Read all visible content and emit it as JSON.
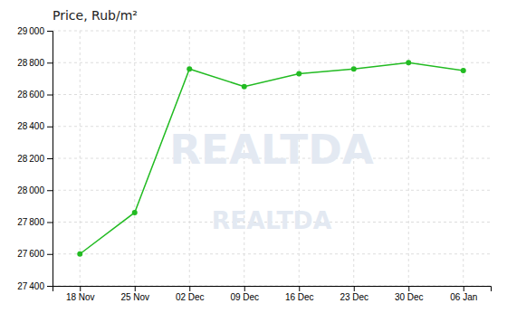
{
  "chart_data": {
    "type": "line",
    "title": "Price, Rub/m²",
    "categories": [
      "18 Nov",
      "25 Nov",
      "02 Dec",
      "09 Dec",
      "16 Dec",
      "23 Dec",
      "30 Dec",
      "06 Jan"
    ],
    "values": [
      27600,
      27860,
      28760,
      28650,
      28730,
      28760,
      28800,
      28750
    ],
    "color": "#22bb22",
    "marker": "circle",
    "ylim": [
      27400,
      29000
    ],
    "yticks": [
      {
        "value": 27400,
        "label": "27 400"
      },
      {
        "value": 27600,
        "label": "27 600"
      },
      {
        "value": 27800,
        "label": "27 800"
      },
      {
        "value": 28000,
        "label": "28 000"
      },
      {
        "value": 28200,
        "label": "28 200"
      },
      {
        "value": 28400,
        "label": "28 400"
      },
      {
        "value": 28600,
        "label": "28 600"
      },
      {
        "value": 28800,
        "label": "28 800"
      },
      {
        "value": 29000,
        "label": "29 000"
      }
    ],
    "grid": true,
    "annotations": [
      "REALTDA",
      "REALTDA"
    ]
  }
}
